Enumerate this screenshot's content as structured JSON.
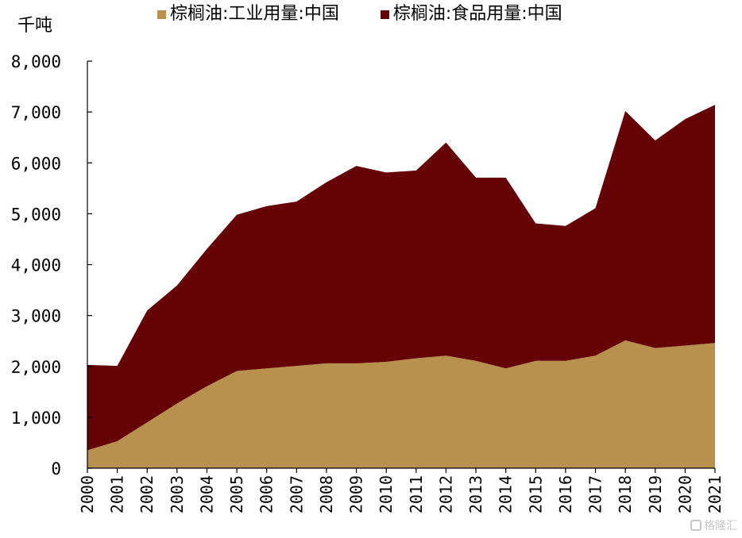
{
  "chart_data": {
    "type": "area",
    "stacked": true,
    "unit": "千吨",
    "categories": [
      "2000",
      "2001",
      "2002",
      "2003",
      "2004",
      "2005",
      "2006",
      "2007",
      "2008",
      "2009",
      "2010",
      "2011",
      "2012",
      "2013",
      "2014",
      "2015",
      "2016",
      "2017",
      "2018",
      "2019",
      "2020",
      "2021"
    ],
    "series": [
      {
        "name": "棕榈油:工业用量:中国",
        "color": "#B8914F",
        "values": [
          350,
          530,
          900,
          1270,
          1610,
          1910,
          1960,
          2010,
          2060,
          2060,
          2090,
          2160,
          2210,
          2110,
          1960,
          2110,
          2110,
          2210,
          2510,
          2360,
          2410,
          2460
        ]
      },
      {
        "name": "棕榈油:食品用量:中国",
        "color": "#640205",
        "values": [
          1680,
          1480,
          2200,
          2320,
          2700,
          3070,
          3190,
          3230,
          3560,
          3880,
          3720,
          3690,
          4190,
          3600,
          3750,
          2700,
          2650,
          2900,
          4510,
          4080,
          4450,
          4680
        ]
      }
    ],
    "ylim": [
      0,
      8000
    ],
    "yticks": [
      0,
      1000,
      2000,
      3000,
      4000,
      5000,
      6000,
      7000,
      8000
    ],
    "ytick_labels": [
      "0",
      "1,000",
      "2,000",
      "3,000",
      "4,000",
      "5,000",
      "6,000",
      "7,000",
      "8,000"
    ],
    "legend_position": "top",
    "grid": false
  },
  "watermark": {
    "text": "格隆汇"
  }
}
